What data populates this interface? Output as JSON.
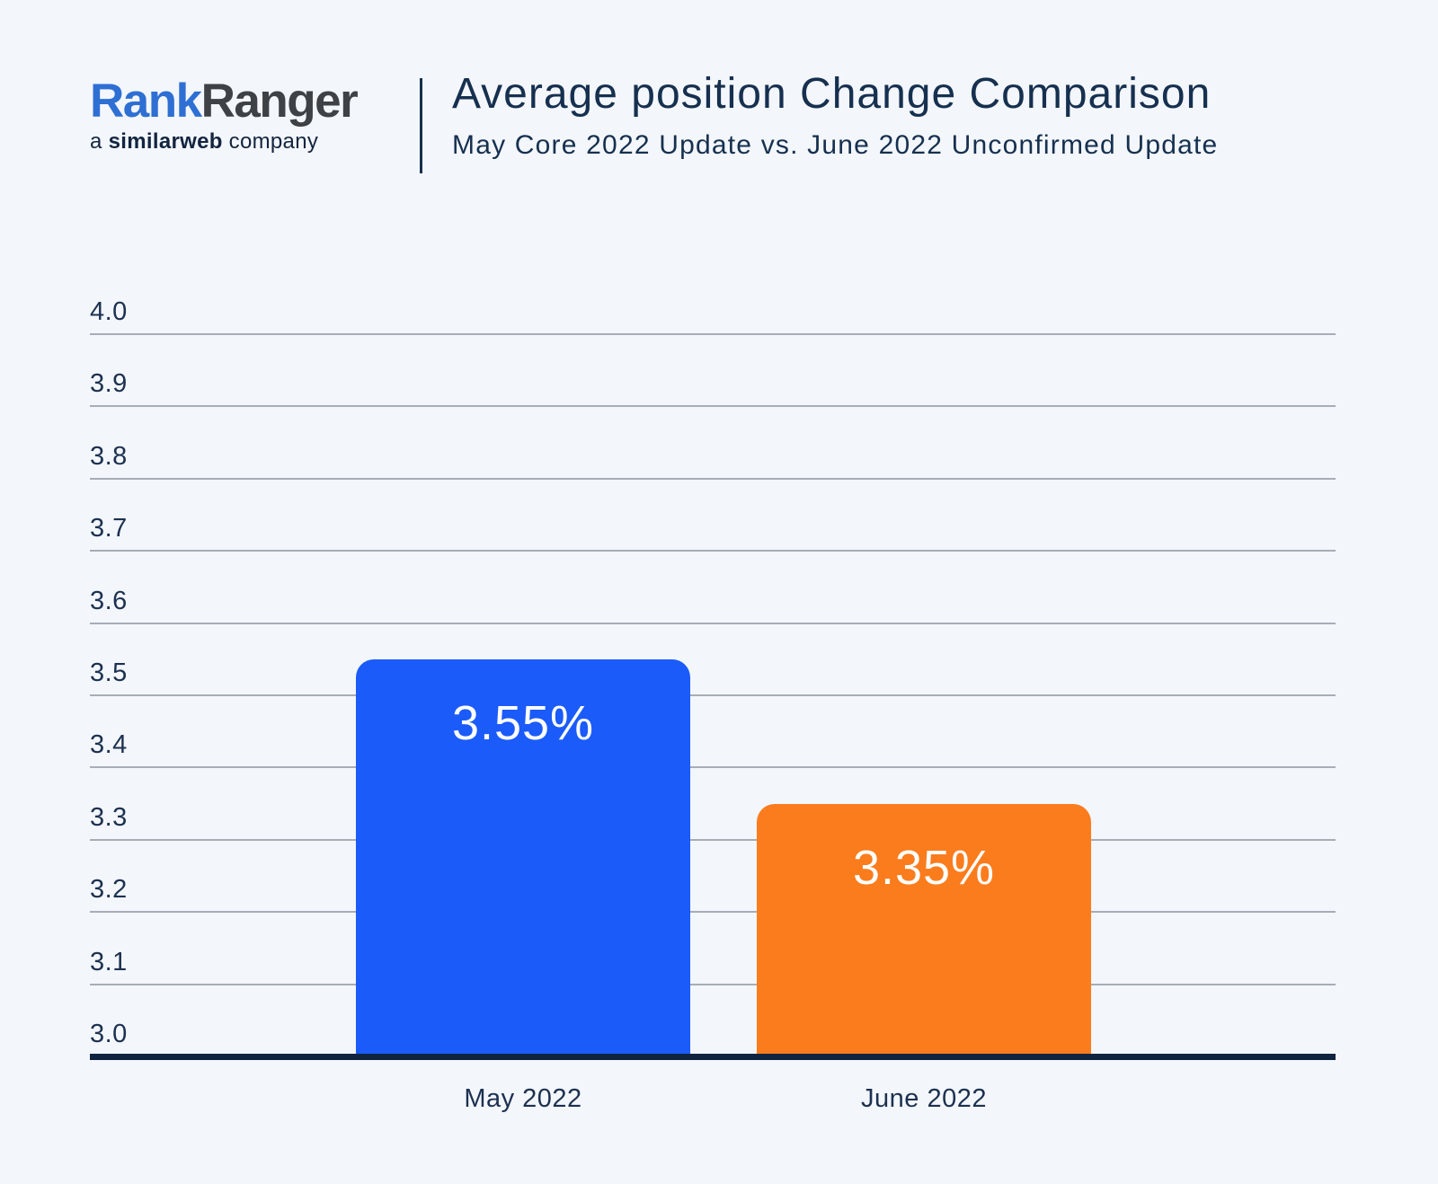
{
  "header": {
    "logo": {
      "brand_part1": "Rank",
      "brand_part2": "Ranger",
      "tagline_prefix": "a ",
      "tagline_brand": "similarweb",
      "tagline_suffix": " company"
    },
    "title": "Average position Change Comparison",
    "subtitle": "May Core 2022 Update vs. June 2022 Unconfirmed Update"
  },
  "colors": {
    "background": "#f3f6fb",
    "title_text": "#16304f",
    "tick_text": "#1c3150",
    "gridline": "#a7adb6",
    "axis_line": "#0f2440",
    "bar_label_text": "#ffffff",
    "bar_may": "#1b5bfa",
    "bar_june": "#fb7c1d",
    "logo_blue": "#2e6fd3",
    "logo_gray": "#3e4145",
    "logo_tagline": "#13253f"
  },
  "chart_data": {
    "type": "bar",
    "title": "Average position Change Comparison",
    "subtitle": "May Core 2022 Update vs. June 2022 Unconfirmed Update",
    "categories": [
      "May 2022",
      "June 2022"
    ],
    "values": [
      3.55,
      3.35
    ],
    "value_labels": [
      "3.55%",
      "3.35%"
    ],
    "series_colors": [
      "#1b5bfa",
      "#fb7c1d"
    ],
    "ylim": [
      3.0,
      4.0
    ],
    "ytick_step": 0.1,
    "ytick_labels": [
      "4.0",
      "3.9",
      "3.8",
      "3.7",
      "3.6",
      "3.5",
      "3.4",
      "3.3",
      "3.2",
      "3.1",
      "3.0"
    ],
    "xlabel": "",
    "ylabel": "",
    "grid": true,
    "legend_position": "none"
  }
}
